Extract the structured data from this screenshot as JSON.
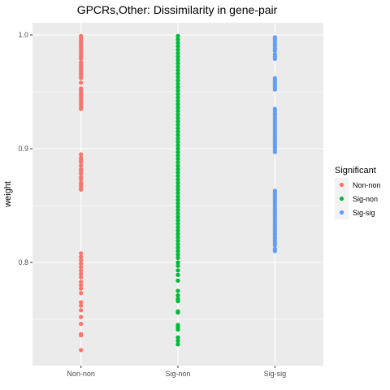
{
  "chart_data": {
    "type": "scatter",
    "title": "GPCRs,Other: Dissimilarity in gene-pair",
    "xlabel": "",
    "ylabel": "weight",
    "categories": [
      "Non-non",
      "Sig-non",
      "Sig-sig"
    ],
    "ylim": [
      0.715,
      1.0
    ],
    "yticks": [
      0.8,
      0.9,
      1.0
    ],
    "ytick_labels": [
      "0.8",
      "0.9",
      "1.0"
    ],
    "grid": true,
    "legend": {
      "title": "Significant",
      "placement": "right"
    },
    "colors": {
      "Non-non": "#F8766D",
      "Sig-non": "#00BA38",
      "Sig-sig": "#619CFF",
      "panel": "#EBEBEB",
      "grid": "#FFFFFF"
    },
    "series": [
      {
        "name": "Non-non",
        "values": [
          0.999,
          0.997,
          0.995,
          0.993,
          0.991,
          0.989,
          0.987,
          0.985,
          0.983,
          0.981,
          0.979,
          0.976,
          0.974,
          0.972,
          0.97,
          0.968,
          0.966,
          0.964,
          0.962,
          0.958,
          0.953,
          0.951,
          0.949,
          0.947,
          0.945,
          0.943,
          0.941,
          0.939,
          0.937,
          0.935,
          0.895,
          0.892,
          0.89,
          0.888,
          0.885,
          0.882,
          0.88,
          0.878,
          0.875,
          0.873,
          0.87,
          0.868,
          0.866,
          0.864,
          0.808,
          0.805,
          0.802,
          0.799,
          0.796,
          0.793,
          0.79,
          0.787,
          0.783,
          0.78,
          0.777,
          0.773,
          0.765,
          0.762,
          0.758,
          0.752,
          0.746,
          0.737,
          0.736,
          0.723
        ]
      },
      {
        "name": "Sig-non",
        "values": [
          0.999,
          0.996,
          0.993,
          0.99,
          0.987,
          0.984,
          0.981,
          0.978,
          0.975,
          0.972,
          0.969,
          0.966,
          0.963,
          0.96,
          0.957,
          0.954,
          0.951,
          0.948,
          0.945,
          0.942,
          0.939,
          0.936,
          0.933,
          0.93,
          0.927,
          0.924,
          0.921,
          0.918,
          0.915,
          0.912,
          0.909,
          0.906,
          0.903,
          0.9,
          0.897,
          0.894,
          0.891,
          0.888,
          0.885,
          0.882,
          0.879,
          0.876,
          0.873,
          0.87,
          0.867,
          0.864,
          0.861,
          0.858,
          0.855,
          0.852,
          0.849,
          0.846,
          0.843,
          0.84,
          0.837,
          0.834,
          0.831,
          0.828,
          0.825,
          0.822,
          0.819,
          0.816,
          0.813,
          0.81,
          0.807,
          0.804,
          0.8,
          0.797,
          0.793,
          0.789,
          0.784,
          0.775,
          0.771,
          0.768,
          0.766,
          0.757,
          0.756,
          0.745,
          0.743,
          0.741,
          0.734,
          0.731,
          0.728
        ]
      },
      {
        "name": "Sig-sig",
        "values": [
          0.998,
          0.996,
          0.994,
          0.992,
          0.99,
          0.988,
          0.986,
          0.983,
          0.981,
          0.979,
          0.962,
          0.96,
          0.958,
          0.956,
          0.954,
          0.952,
          0.935,
          0.933,
          0.931,
          0.929,
          0.927,
          0.925,
          0.923,
          0.921,
          0.919,
          0.917,
          0.915,
          0.913,
          0.911,
          0.909,
          0.907,
          0.905,
          0.903,
          0.901,
          0.899,
          0.897,
          0.863,
          0.861,
          0.859,
          0.857,
          0.855,
          0.853,
          0.851,
          0.849,
          0.847,
          0.845,
          0.843,
          0.841,
          0.839,
          0.837,
          0.835,
          0.833,
          0.831,
          0.829,
          0.827,
          0.825,
          0.823,
          0.821,
          0.819,
          0.817,
          0.815,
          0.812,
          0.81
        ]
      }
    ]
  }
}
